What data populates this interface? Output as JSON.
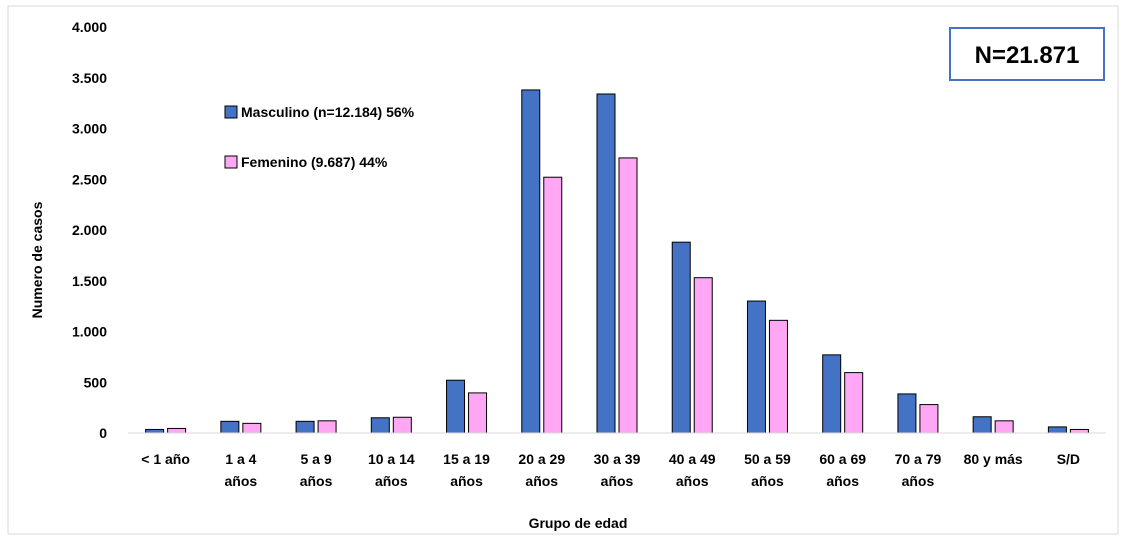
{
  "chart_data": {
    "type": "bar",
    "title": "",
    "xlabel": "Grupo de edad",
    "ylabel": "Numero de casos",
    "ylim": [
      0,
      4000
    ],
    "y_ticks": [
      0,
      500,
      1000,
      1500,
      2000,
      2500,
      3000,
      3500,
      4000
    ],
    "y_tick_labels": [
      "0",
      "500",
      "1.000",
      "1.500",
      "2.000",
      "2.500",
      "3.000",
      "3.500",
      "4.000"
    ],
    "grid": false,
    "legend_position": "top-left",
    "categories": [
      [
        "< 1 año"
      ],
      [
        "1 a 4",
        "años"
      ],
      [
        "5 a 9",
        "años"
      ],
      [
        "10 a 14",
        "años"
      ],
      [
        "15 a 19",
        "años"
      ],
      [
        "20 a 29",
        "años"
      ],
      [
        "30 a 39",
        "años"
      ],
      [
        "40 a 49",
        "años"
      ],
      [
        "50 a 59",
        "años"
      ],
      [
        "60 a 69",
        "años"
      ],
      [
        "70 a 79",
        "años"
      ],
      [
        "80 y más"
      ],
      [
        "S/D"
      ]
    ],
    "series": [
      {
        "name": "Masculino (n=12.184) 56%",
        "color": "#4472C4",
        "values": [
          35,
          115,
          115,
          150,
          520,
          3380,
          3340,
          1880,
          1300,
          770,
          385,
          160,
          60
        ]
      },
      {
        "name": "Femenino (9.687) 44%",
        "color": "#FFA7F5",
        "values": [
          45,
          95,
          120,
          155,
          395,
          2520,
          2710,
          1530,
          1110,
          595,
          280,
          120,
          35
        ]
      }
    ],
    "annotation": "N=21.871",
    "annotation_border_color": "#4472C4"
  }
}
